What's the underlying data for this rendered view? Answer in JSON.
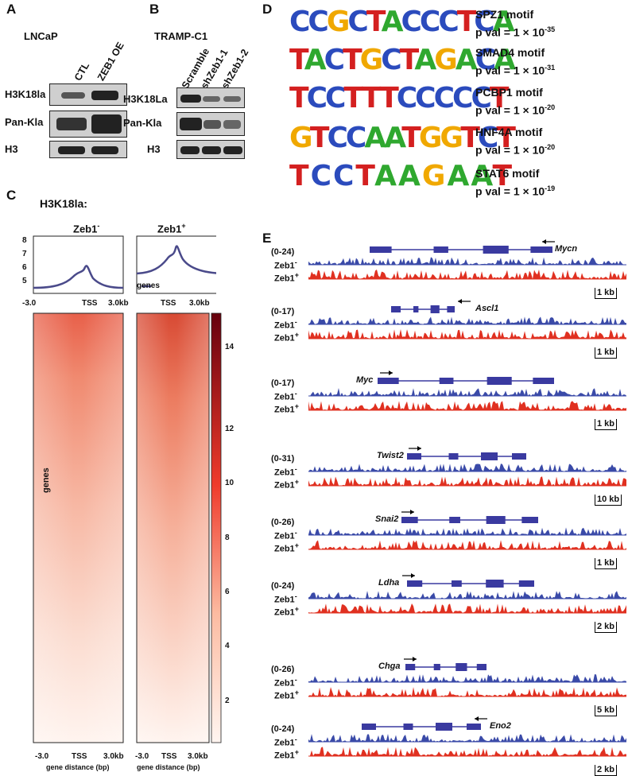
{
  "panels": {
    "A": "A",
    "B": "B",
    "C": "C",
    "D": "D",
    "E": "E"
  },
  "panelA": {
    "cell_line": "LNCaP",
    "columns": [
      "CTL",
      "ZEB1 OE"
    ],
    "rows": [
      "H3K18la",
      "Pan-Kla",
      "H3"
    ]
  },
  "panelB": {
    "cell_line": "TRAMP-C1",
    "columns": [
      "Scramble",
      "shZeb1-1",
      "shZeb1-2"
    ],
    "rows": [
      "H3K18La",
      "Pan-Kla",
      "H3"
    ]
  },
  "panelC": {
    "title": "H3K18la:",
    "profile_titles": [
      "Zeb1",
      "Zeb1"
    ],
    "profile_sup": [
      "-",
      "+"
    ],
    "legend": "genes",
    "y_ticks": [
      "8",
      "7",
      "6",
      "5"
    ],
    "x_ticks": [
      "-3.0",
      "TSS",
      "3.0kb"
    ],
    "heatmap_ylabel": "genes",
    "heatmap_xlabel": "gene distance (bp)",
    "colorbar_ticks": [
      "14",
      "12",
      "10",
      "8",
      "6",
      "4",
      "2"
    ],
    "colors": {
      "profile": "#4a4a8a",
      "heat_high": "#7a0b0b",
      "heat_low": "#fff5f0"
    }
  },
  "panelD": {
    "motifs": [
      {
        "logo": "CCGCTACCCTCA",
        "name": "SPZ1 motif",
        "p": "p val = 1 × 10",
        "exp": "-35"
      },
      {
        "logo": "TACTGCTAGACA",
        "name": "SMAD4 motif",
        "p": "p val = 1 × 10",
        "exp": "-31"
      },
      {
        "logo": "TCCTTTCCCCCT",
        "name": "PCBP1 motif",
        "p": "p val = 1 × 10",
        "exp": "-20"
      },
      {
        "logo": "GTCCAATGGTCT",
        "name": "HNF4A motif",
        "p": "p val = 1 × 10",
        "exp": "-20"
      },
      {
        "logo": "TCCTAAGAAT",
        "name": "STAT6 motif",
        "p": "p val = 1 × 10",
        "exp": "-19"
      }
    ],
    "base_colors": {
      "A": "#2fa82f",
      "C": "#2b4bbd",
      "G": "#f0a800",
      "T": "#d42020"
    }
  },
  "panelE": {
    "track_labels": [
      "Zeb1",
      "Zeb1"
    ],
    "track_sup": [
      "-",
      "+"
    ],
    "colors": {
      "neg": "#3a4aa8",
      "pos": "#e03020",
      "gene": "#3a3aa0"
    },
    "loci": [
      {
        "gene": "Mycn",
        "range": "(0-24)",
        "scale": "1 kb",
        "dir": "left"
      },
      {
        "gene": "Ascl1",
        "range": "(0-17)",
        "scale": "1 kb",
        "dir": "left"
      },
      {
        "gene": "Myc",
        "range": "(0-17)",
        "scale": "1 kb",
        "dir": "right"
      },
      {
        "gene": "Twist2",
        "range": "(0-31)",
        "scale": "10 kb",
        "dir": "right"
      },
      {
        "gene": "Snai2",
        "range": "(0-26)",
        "scale": "1 kb",
        "dir": "right"
      },
      {
        "gene": "Ldha",
        "range": "(0-24)",
        "scale": "2 kb",
        "dir": "right"
      },
      {
        "gene": "Chga",
        "range": "(0-26)",
        "scale": "5 kb",
        "dir": "right"
      },
      {
        "gene": "Eno2",
        "range": "(0-24)",
        "scale": "2 kb",
        "dir": "left"
      }
    ]
  }
}
